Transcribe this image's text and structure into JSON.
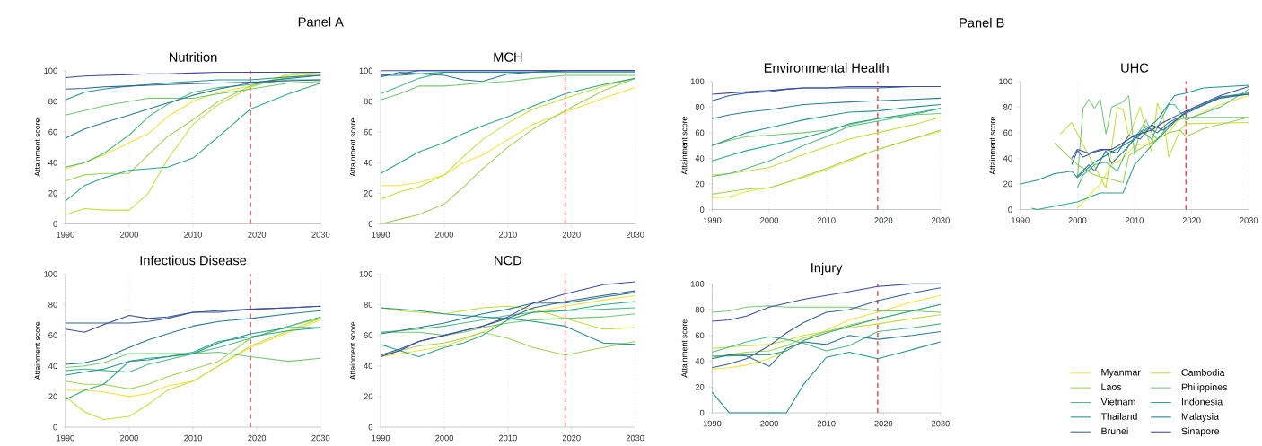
{
  "chart_data": [
    {
      "type": "line",
      "title": "Nutrition",
      "ylabel": "Attainment score",
      "annotations": [
        "Panel A"
      ],
      "x": [
        1990,
        1993,
        1996,
        2000,
        2003,
        2006,
        2010,
        2014,
        2019,
        2025,
        2030
      ],
      "xlim": [
        1990,
        2030
      ],
      "xticks": [
        1990,
        2000,
        2010,
        2020,
        2030
      ],
      "ylim": [
        0,
        100
      ],
      "yticks": [
        0,
        20,
        40,
        60,
        80,
        100
      ],
      "grid": "x",
      "ref_lines": [
        {
          "axis": "x",
          "value": 2019,
          "color": "#e8262a",
          "line_style": "dashed"
        }
      ],
      "series": [
        {
          "color": "#f2e33b",
          "values": [
            36,
            40,
            45,
            53,
            59,
            70,
            80,
            86,
            90,
            97,
            99
          ]
        },
        {
          "color": "#c4dd3c",
          "values": [
            6,
            10,
            9,
            9,
            20,
            42,
            65,
            78,
            89,
            98,
            99
          ]
        },
        {
          "color": "#9fd35a",
          "values": [
            28,
            32,
            33,
            33,
            45,
            57,
            68,
            80,
            90,
            96,
            98
          ]
        },
        {
          "color": "#74c774",
          "values": [
            71,
            74,
            77,
            80,
            82,
            82,
            82,
            85,
            88,
            92,
            93
          ]
        },
        {
          "color": "#4fba84",
          "values": [
            37,
            40,
            46,
            58,
            70,
            78,
            86,
            89,
            91,
            94,
            94
          ]
        },
        {
          "color": "#2ea687",
          "values": [
            15,
            25,
            30,
            35,
            36,
            37,
            43,
            57,
            75,
            85,
            92
          ]
        },
        {
          "color": "#22938c",
          "values": [
            81,
            86,
            88,
            90,
            91,
            92,
            93,
            94,
            94,
            96,
            97
          ]
        },
        {
          "color": "#2a7b92",
          "values": [
            56,
            62,
            66,
            71,
            75,
            79,
            84,
            88,
            92,
            95,
            97
          ]
        },
        {
          "color": "#325f95",
          "values": [
            88,
            88.5,
            89.5,
            90,
            90.5,
            91,
            91.5,
            92,
            92.5,
            93.5,
            94
          ]
        },
        {
          "color": "#3d4b9c",
          "values": [
            95.5,
            96.5,
            97,
            97.5,
            98,
            98,
            98.5,
            99,
            99,
            99,
            99
          ]
        }
      ]
    },
    {
      "type": "line",
      "title": "MCH",
      "ylabel": "Attainment score",
      "x": [
        1990,
        1993,
        1996,
        2000,
        2003,
        2006,
        2010,
        2014,
        2019,
        2025,
        2030
      ],
      "xlim": [
        1990,
        2030
      ],
      "xticks": [
        1990,
        2000,
        2010,
        2020,
        2030
      ],
      "ylim": [
        0,
        100
      ],
      "yticks": [
        0,
        20,
        40,
        60,
        80,
        100
      ],
      "grid": "x",
      "ref_lines": [
        {
          "axis": "x",
          "value": 2019,
          "color": "#e8262a",
          "line_style": "dashed"
        }
      ],
      "series": [
        {
          "color": "#f2e33b",
          "values": [
            25,
            25,
            27,
            32,
            40,
            45,
            55,
            65,
            73,
            82,
            89
          ]
        },
        {
          "color": "#c4dd3c",
          "values": [
            16,
            21,
            24,
            32,
            44,
            55,
            66,
            75,
            82,
            90,
            95
          ]
        },
        {
          "color": "#9fd35a",
          "values": [
            0,
            3,
            6,
            13,
            24,
            36,
            50,
            62,
            74,
            87,
            95
          ]
        },
        {
          "color": "#74c774",
          "values": [
            81,
            85,
            90,
            90,
            91,
            92,
            93,
            95,
            97,
            97,
            97
          ]
        },
        {
          "color": "#4fba84",
          "values": [
            85,
            90,
            95,
            99,
            99,
            99,
            99,
            99,
            99,
            99,
            99
          ]
        },
        {
          "color": "#2ea687",
          "values": [
            33,
            40,
            47,
            53,
            59,
            64,
            70,
            77,
            85,
            91,
            95
          ]
        },
        {
          "color": "#22938c",
          "values": [
            97,
            97,
            98,
            99,
            99,
            99,
            99,
            99,
            100,
            100,
            100
          ]
        },
        {
          "color": "#2a7b92",
          "values": [
            96,
            99,
            98,
            97,
            94,
            93,
            98,
            99,
            100,
            100,
            100
          ]
        },
        {
          "color": "#325f95",
          "values": [
            97,
            98,
            100,
            100,
            100,
            100,
            100,
            100,
            100,
            100,
            100
          ]
        },
        {
          "color": "#3d4b9c",
          "values": [
            100,
            100,
            100,
            100,
            100,
            100,
            100,
            100,
            100,
            100,
            100
          ]
        }
      ]
    },
    {
      "type": "line",
      "title": "Infectious Disease",
      "ylabel": "Attainment score",
      "x": [
        1990,
        1993,
        1996,
        2000,
        2003,
        2006,
        2010,
        2014,
        2019,
        2025,
        2030
      ],
      "xlim": [
        1990,
        2030
      ],
      "xticks": [
        1990,
        2000,
        2010,
        2020,
        2030
      ],
      "ylim": [
        0,
        100
      ],
      "yticks": [
        0,
        20,
        40,
        60,
        80,
        100
      ],
      "grid": "x",
      "ref_lines": [
        {
          "axis": "x",
          "value": 2019,
          "color": "#e8262a",
          "line_style": "dashed"
        }
      ],
      "series": [
        {
          "color": "#f2e33b",
          "values": [
            24,
            24,
            23,
            20,
            22,
            27,
            30,
            40,
            52,
            62,
            70
          ]
        },
        {
          "color": "#c4dd3c",
          "values": [
            20,
            10,
            5,
            7,
            15,
            24,
            30,
            40,
            53,
            63,
            71
          ]
        },
        {
          "color": "#9fd35a",
          "values": [
            30,
            28,
            28,
            25,
            28,
            33,
            38,
            43,
            58,
            66,
            71
          ]
        },
        {
          "color": "#74c774",
          "values": [
            39,
            40,
            42,
            48,
            48,
            48,
            48,
            49,
            46,
            43,
            45
          ]
        },
        {
          "color": "#4fba84",
          "values": [
            37,
            38,
            37,
            36,
            41,
            44,
            48,
            52,
            58,
            66,
            72
          ]
        },
        {
          "color": "#2ea687",
          "values": [
            18,
            24,
            28,
            43,
            45,
            46,
            49,
            56,
            59,
            63,
            65
          ]
        },
        {
          "color": "#22938c",
          "values": [
            34,
            36,
            38,
            43,
            44,
            46,
            48,
            55,
            61,
            65,
            65
          ]
        },
        {
          "color": "#2a7b92",
          "values": [
            41,
            42,
            45,
            52,
            57,
            61,
            66,
            69,
            71,
            74,
            76
          ]
        },
        {
          "color": "#325f95",
          "values": [
            68,
            68,
            68,
            68,
            69,
            71,
            75,
            76,
            77,
            78,
            79
          ]
        },
        {
          "color": "#3d4b9c",
          "values": [
            64,
            62,
            67,
            73,
            71,
            72,
            75,
            75,
            77,
            78,
            79
          ]
        }
      ]
    },
    {
      "type": "line",
      "title": "NCD",
      "ylabel": "Attainment score",
      "x": [
        1990,
        1993,
        1996,
        2000,
        2003,
        2006,
        2010,
        2014,
        2019,
        2025,
        2030
      ],
      "xlim": [
        1990,
        2030
      ],
      "xticks": [
        1990,
        2000,
        2010,
        2020,
        2030
      ],
      "ylim": [
        0,
        100
      ],
      "yticks": [
        0,
        20,
        40,
        60,
        80,
        100
      ],
      "grid": "x",
      "ref_lines": [
        {
          "axis": "x",
          "value": 2019,
          "color": "#e8262a",
          "line_style": "dashed"
        }
      ],
      "series": [
        {
          "color": "#f2e33b",
          "values": [
            46,
            48,
            50,
            53,
            57,
            62,
            70,
            75,
            79,
            83,
            86
          ]
        },
        {
          "color": "#c4dd3c",
          "values": [
            78,
            76,
            75,
            74,
            76,
            78,
            79,
            77,
            71,
            64,
            65
          ]
        },
        {
          "color": "#9fd35a",
          "values": [
            47,
            50,
            53,
            55,
            58,
            62,
            58,
            52,
            47,
            52,
            56
          ]
        },
        {
          "color": "#74c774",
          "values": [
            62,
            62,
            62,
            60,
            62,
            65,
            68,
            70,
            71,
            72,
            74
          ]
        },
        {
          "color": "#4fba84",
          "values": [
            62,
            63,
            64,
            66,
            68,
            70,
            73,
            75,
            76,
            77,
            78
          ]
        },
        {
          "color": "#2ea687",
          "values": [
            54,
            50,
            46,
            52,
            55,
            60,
            70,
            75,
            76,
            80,
            82
          ]
        },
        {
          "color": "#22938c",
          "values": [
            78,
            77,
            76,
            74,
            73,
            72,
            71,
            69,
            66,
            55,
            54
          ]
        },
        {
          "color": "#2a7b92",
          "values": [
            61,
            63,
            65,
            68,
            71,
            74,
            77,
            81,
            81,
            85,
            88
          ]
        },
        {
          "color": "#325f95",
          "values": [
            47,
            51,
            56,
            60,
            63,
            66,
            71,
            78,
            82,
            86,
            89
          ]
        },
        {
          "color": "#3d4b9c",
          "values": [
            46,
            50,
            56,
            60,
            63,
            66,
            72,
            81,
            87,
            93,
            95
          ]
        }
      ]
    },
    {
      "type": "line",
      "title": "Environmental Health",
      "ylabel": "Attainment score",
      "annotations": [
        "Panel B"
      ],
      "x": [
        1990,
        1993,
        1996,
        2000,
        2003,
        2006,
        2010,
        2014,
        2019,
        2025,
        2030
      ],
      "xlim": [
        1990,
        2030
      ],
      "xticks": [
        1990,
        2000,
        2010,
        2020,
        2030
      ],
      "ylim": [
        0,
        100
      ],
      "yticks": [
        0,
        20,
        40,
        60,
        80,
        100
      ],
      "grid": "x",
      "ref_lines": [
        {
          "axis": "x",
          "value": 2019,
          "color": "#e8262a",
          "line_style": "dashed"
        }
      ],
      "series": [
        {
          "color": "#f2e33b",
          "values": [
            9,
            10,
            14,
            17,
            21,
            25,
            31,
            38,
            47,
            55,
            61
          ]
        },
        {
          "color": "#c4dd3c",
          "values": [
            27,
            28,
            30,
            33,
            38,
            43,
            49,
            55,
            60,
            66,
            72
          ]
        },
        {
          "color": "#9fd35a",
          "values": [
            12,
            14,
            16,
            17,
            21,
            26,
            32,
            39,
            47,
            55,
            62
          ]
        },
        {
          "color": "#74c774",
          "values": [
            50,
            54,
            57,
            58,
            59,
            60,
            62,
            66,
            71,
            74,
            75
          ]
        },
        {
          "color": "#4fba84",
          "values": [
            26,
            28,
            32,
            38,
            44,
            50,
            57,
            65,
            69,
            74,
            79
          ]
        },
        {
          "color": "#2ea687",
          "values": [
            38,
            42,
            46,
            50,
            53,
            56,
            61,
            67,
            71,
            75,
            79
          ]
        },
        {
          "color": "#22938c",
          "values": [
            50,
            55,
            60,
            64,
            67,
            70,
            73,
            76,
            77,
            80,
            82
          ]
        },
        {
          "color": "#2a7b92",
          "values": [
            71,
            74,
            76,
            78,
            80,
            82,
            83,
            84,
            85,
            86,
            87
          ]
        },
        {
          "color": "#325f95",
          "values": [
            85,
            89,
            91,
            92,
            94,
            95,
            95,
            95,
            95,
            96,
            96
          ]
        },
        {
          "color": "#3d4b9c",
          "values": [
            90,
            91,
            92,
            93,
            94,
            95,
            95,
            96,
            96,
            96,
            96
          ]
        }
      ]
    },
    {
      "type": "line",
      "title": "UHC",
      "ylabel": "Attainment score",
      "xlim": [
        1990,
        2030
      ],
      "xticks": [
        1990,
        2000,
        2010,
        2020,
        2030
      ],
      "ylim": [
        0,
        100
      ],
      "yticks": [
        0,
        20,
        40,
        60,
        80,
        100
      ],
      "grid": "x",
      "ref_lines": [
        {
          "axis": "x",
          "value": 2019,
          "color": "#e8262a",
          "line_style": "dashed"
        }
      ],
      "series": [
        {
          "color": "#f2e33b",
          "x": [
            2000,
            2004,
            2006,
            2008,
            2010,
            2013,
            2016,
            2018,
            2019,
            2025,
            2030
          ],
          "values": [
            1,
            20,
            35,
            40,
            50,
            52,
            60,
            72,
            70,
            82,
            89
          ]
        },
        {
          "color": "#c4dd3c",
          "x": [
            1997,
            1999,
            2000,
            2005,
            2007,
            2008,
            2009,
            2011,
            2013,
            2014,
            2015,
            2016,
            2018,
            2019,
            2030
          ],
          "values": [
            59,
            68,
            59,
            17,
            80,
            78,
            57,
            80,
            45,
            83,
            73,
            41,
            62,
            67,
            68
          ]
        },
        {
          "color": "#9fd35a",
          "x": [
            1996,
            2000,
            2003,
            2008,
            2009,
            2012,
            2016,
            2018,
            2019,
            2022,
            2030
          ],
          "values": [
            52,
            35,
            27,
            21,
            42,
            50,
            60,
            62,
            57,
            63,
            72
          ]
        },
        {
          "color": "#74c774",
          "x": [
            2000,
            2001,
            2002,
            2003,
            2004,
            2005,
            2006,
            2008,
            2009,
            2010,
            2011,
            2012,
            2013,
            2014,
            2016,
            2017,
            2019,
            2025,
            2030
          ],
          "values": [
            25,
            79,
            86,
            79,
            86,
            59,
            80,
            84,
            89,
            43,
            62,
            70,
            60,
            55,
            66,
            69,
            72,
            72,
            72
          ]
        },
        {
          "color": "#4fba84",
          "x": [
            2000,
            2001,
            2003,
            2005,
            2007,
            2009,
            2011,
            2013,
            2015,
            2016,
            2017,
            2019,
            2025,
            2030
          ],
          "values": [
            17,
            27,
            35,
            37,
            30,
            50,
            62,
            55,
            73,
            82,
            82,
            70,
            80,
            94
          ]
        },
        {
          "color": "#2ea687",
          "x": [
            1992,
            1993,
            2000,
            2004,
            2008,
            2010,
            2014,
            2019,
            2025,
            2030
          ],
          "values": [
            1,
            0,
            6,
            13,
            13,
            35,
            55,
            77,
            88,
            91
          ]
        },
        {
          "color": "#22938c",
          "x": [
            1990,
            1993,
            1996,
            1999,
            2000,
            2003,
            2006,
            2010,
            2014,
            2017,
            2019,
            2022,
            2030
          ],
          "values": [
            20,
            23,
            28,
            30,
            25,
            37,
            45,
            55,
            70,
            89,
            91,
            95,
            97
          ]
        },
        {
          "color": "#2a7b92",
          "x": [
            2000,
            2002,
            2003,
            2005,
            2006,
            2008,
            2010,
            2012,
            2014,
            2016,
            2019,
            2025,
            2030
          ],
          "values": [
            26,
            35,
            30,
            46,
            36,
            45,
            55,
            65,
            60,
            68,
            75,
            88,
            90
          ]
        },
        {
          "color": "#325f95",
          "x": [
            1999,
            2000,
            2001,
            2003,
            2005,
            2007,
            2009,
            2011,
            2013,
            2015,
            2017,
            2019,
            2025,
            2030
          ],
          "values": [
            35,
            46,
            41,
            45,
            47,
            44,
            58,
            55,
            66,
            62,
            69,
            76,
            87,
            90
          ]
        },
        {
          "color": "#3d4b9c",
          "x": [
            1999,
            2000,
            2002,
            2004,
            2006,
            2008,
            2010,
            2013,
            2015,
            2019,
            2025,
            2030
          ],
          "values": [
            40,
            47,
            44,
            47,
            47,
            52,
            58,
            62,
            68,
            77,
            89,
            96
          ]
        }
      ]
    },
    {
      "type": "line",
      "title": "Injury",
      "ylabel": "Attainment score",
      "legend": "right",
      "x": [
        1990,
        1993,
        1996,
        2000,
        2003,
        2006,
        2010,
        2014,
        2019,
        2025,
        2030
      ],
      "xlim": [
        1990,
        2030
      ],
      "xticks": [
        1990,
        2000,
        2010,
        2020,
        2030
      ],
      "ylim": [
        0,
        100
      ],
      "yticks": [
        0,
        20,
        40,
        60,
        80,
        100
      ],
      "grid": "x",
      "ref_lines": [
        {
          "axis": "x",
          "value": 2019,
          "color": "#e8262a",
          "line_style": "dashed"
        }
      ],
      "series": [
        {
          "name": "Myanmar",
          "color": "#f2e33b",
          "values": [
            34,
            35,
            37,
            42,
            48,
            56,
            64,
            72,
            78,
            86,
            91
          ]
        },
        {
          "name": "Cambodia",
          "color": "#c4dd3c",
          "values": [
            50,
            51,
            52,
            53,
            56,
            60,
            63,
            66,
            69,
            73,
            76
          ]
        },
        {
          "name": "Laos",
          "color": "#9fd35a",
          "values": [
            43,
            45,
            47,
            48,
            52,
            58,
            63,
            68,
            73,
            79,
            84
          ]
        },
        {
          "name": "Philippines",
          "color": "#74c774",
          "values": [
            78,
            79,
            82,
            83,
            82,
            82,
            82,
            82,
            79,
            79,
            78
          ]
        },
        {
          "name": "Vietnam",
          "color": "#4fba84",
          "values": [
            47,
            51,
            55,
            59,
            57,
            54,
            48,
            52,
            63,
            66,
            69
          ]
        },
        {
          "name": "Indonesia",
          "color": "#2ea687",
          "values": [
            44,
            44,
            45,
            45,
            48,
            56,
            62,
            67,
            73,
            79,
            84
          ]
        },
        {
          "name": "Thailand",
          "color": "#22938c",
          "values": [
            16,
            0,
            0,
            0,
            0,
            22,
            43,
            47,
            42,
            49,
            55
          ]
        },
        {
          "name": "Malaysia",
          "color": "#2a7b92",
          "values": [
            42,
            45,
            44,
            36,
            50,
            55,
            53,
            60,
            57,
            60,
            63
          ]
        },
        {
          "name": "Brunei",
          "color": "#325f95",
          "values": [
            35,
            38,
            42,
            52,
            62,
            70,
            78,
            80,
            87,
            93,
            97
          ]
        },
        {
          "name": "Sinapore",
          "color": "#3d4b9c",
          "values": [
            71,
            72,
            75,
            82,
            85,
            88,
            91,
            94,
            98,
            100,
            100
          ]
        }
      ]
    }
  ]
}
